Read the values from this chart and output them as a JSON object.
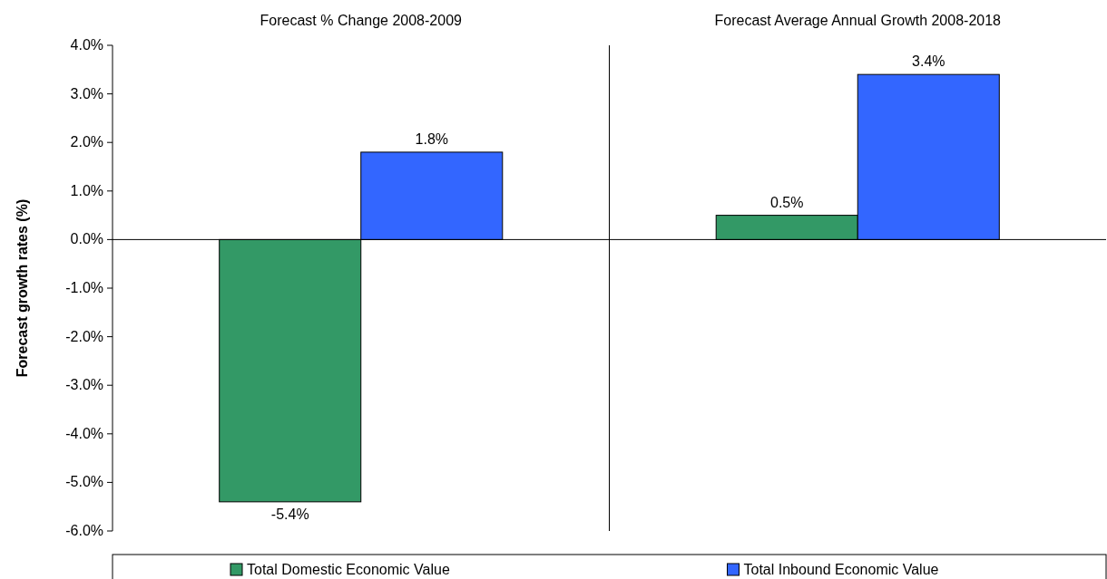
{
  "chart_data": {
    "type": "bar",
    "ylabel": "Forecast growth rates (%)",
    "categories": [
      "Forecast % Change 2008-2009",
      "Forecast Average Annual Growth 2008-2018"
    ],
    "series": [
      {
        "name": "Total Domestic Economic Value",
        "color": "#339966",
        "values": [
          -5.4,
          0.5
        ],
        "value_labels": [
          "-5.4%",
          "0.5%"
        ]
      },
      {
        "name": "Total Inbound Economic Value",
        "color": "#3366ff",
        "values": [
          1.8,
          3.4
        ],
        "value_labels": [
          "1.8%",
          "3.4%"
        ]
      }
    ],
    "ylim": [
      -6,
      4
    ],
    "yticks": [
      {
        "value": -6,
        "label": "-6.0%"
      },
      {
        "value": -5,
        "label": "-5.0%"
      },
      {
        "value": -4,
        "label": "-4.0%"
      },
      {
        "value": -3,
        "label": "-3.0%"
      },
      {
        "value": -2,
        "label": "-2.0%"
      },
      {
        "value": -1,
        "label": "-1.0%"
      },
      {
        "value": 0,
        "label": "0.0%"
      },
      {
        "value": 1,
        "label": "1.0%"
      },
      {
        "value": 2,
        "label": "2.0%"
      },
      {
        "value": 3,
        "label": "3.0%"
      },
      {
        "value": 4,
        "label": "4.0%"
      }
    ],
    "legend": "bottom"
  }
}
